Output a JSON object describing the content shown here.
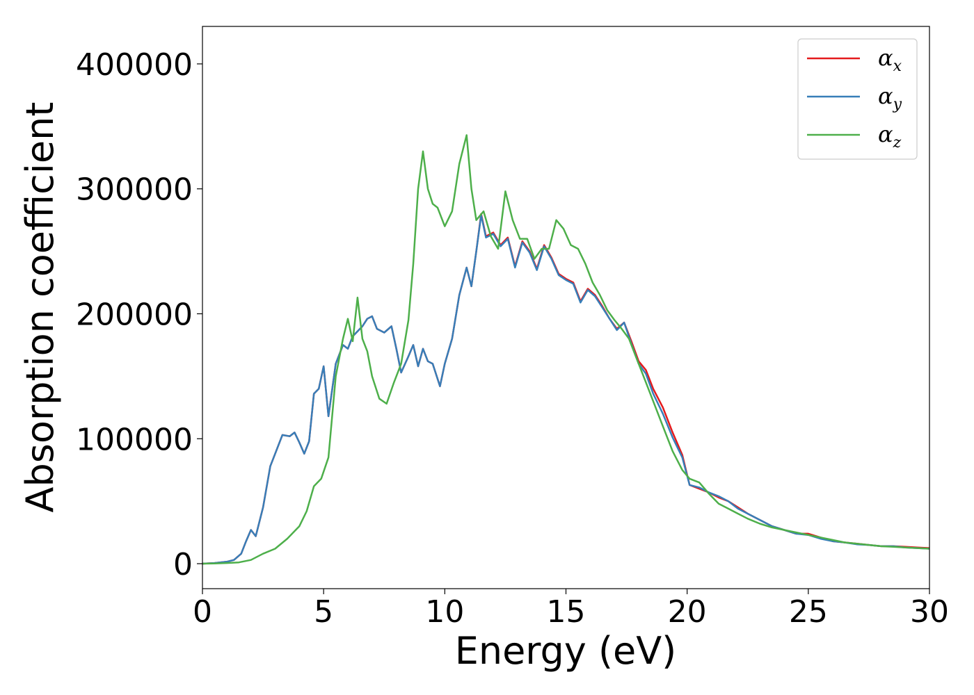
{
  "chart_data": {
    "type": "line",
    "title": "",
    "xlabel": "Energy (eV)",
    "ylabel": "Absorption coefficient",
    "xlim": [
      0,
      30
    ],
    "ylim": [
      -20000,
      430000
    ],
    "xticks": [
      0,
      5,
      10,
      15,
      20,
      25,
      30
    ],
    "xtick_labels": [
      "0",
      "5",
      "10",
      "15",
      "20",
      "25",
      "30"
    ],
    "yticks": [
      0,
      100000,
      200000,
      300000,
      400000
    ],
    "ytick_labels": [
      "0",
      "100000",
      "200000",
      "300000",
      "400000"
    ],
    "grid": false,
    "legend_position": "top-right",
    "series": [
      {
        "name": "α_x",
        "legend_base": "α",
        "legend_sub": "x",
        "color": "#e41a1c",
        "x": [
          0,
          0.5,
          1,
          1.3,
          1.6,
          1.8,
          2.0,
          2.2,
          2.5,
          2.8,
          3.0,
          3.3,
          3.6,
          3.8,
          4.0,
          4.2,
          4.4,
          4.6,
          4.8,
          5.0,
          5.2,
          5.5,
          5.8,
          6.0,
          6.2,
          6.4,
          6.6,
          6.8,
          7.0,
          7.2,
          7.5,
          7.8,
          8.0,
          8.2,
          8.5,
          8.7,
          8.9,
          9.1,
          9.3,
          9.5,
          9.8,
          10.0,
          10.3,
          10.6,
          10.9,
          11.1,
          11.3,
          11.5,
          11.7,
          12.0,
          12.3,
          12.6,
          12.9,
          13.2,
          13.5,
          13.8,
          14.1,
          14.4,
          14.7,
          15.0,
          15.3,
          15.6,
          15.9,
          16.2,
          16.5,
          16.8,
          17.1,
          17.4,
          17.7,
          18.0,
          18.3,
          18.6,
          19.0,
          19.4,
          19.8,
          20.1,
          20.5,
          20.9,
          21.3,
          21.7,
          22.1,
          22.5,
          23.0,
          23.5,
          24.0,
          24.5,
          25.0,
          25.5,
          26.0,
          26.5,
          27.0,
          27.5,
          28.0,
          28.5,
          29.0,
          29.5,
          30.0
        ],
        "y": [
          0,
          500,
          1500,
          3000,
          8000,
          18000,
          27000,
          22000,
          45000,
          78000,
          88000,
          103000,
          102000,
          105000,
          97000,
          88000,
          98000,
          136000,
          140000,
          158000,
          118000,
          160000,
          175000,
          172000,
          182000,
          186000,
          190000,
          196000,
          198000,
          188000,
          185000,
          190000,
          172000,
          153000,
          166000,
          175000,
          158000,
          172000,
          162000,
          160000,
          142000,
          160000,
          180000,
          215000,
          237000,
          222000,
          250000,
          280000,
          262000,
          265000,
          255000,
          261000,
          238000,
          258000,
          250000,
          236000,
          255000,
          245000,
          232000,
          228000,
          225000,
          210000,
          220000,
          215000,
          206000,
          196000,
          188000,
          193000,
          178000,
          162000,
          155000,
          140000,
          125000,
          105000,
          87000,
          63000,
          60000,
          57000,
          53000,
          50000,
          45000,
          40000,
          35000,
          30000,
          27000,
          24000,
          24000,
          21000,
          18000,
          17000,
          16000,
          15000,
          14000,
          14000,
          13500,
          13000,
          12500
        ]
      },
      {
        "name": "α_y",
        "legend_base": "α",
        "legend_sub": "y",
        "color": "#377eb8",
        "x": [
          0,
          0.5,
          1,
          1.3,
          1.6,
          1.8,
          2.0,
          2.2,
          2.5,
          2.8,
          3.0,
          3.3,
          3.6,
          3.8,
          4.0,
          4.2,
          4.4,
          4.6,
          4.8,
          5.0,
          5.2,
          5.5,
          5.8,
          6.0,
          6.2,
          6.4,
          6.6,
          6.8,
          7.0,
          7.2,
          7.5,
          7.8,
          8.0,
          8.2,
          8.5,
          8.7,
          8.9,
          9.1,
          9.3,
          9.5,
          9.8,
          10.0,
          10.3,
          10.6,
          10.9,
          11.1,
          11.3,
          11.5,
          11.7,
          12.0,
          12.3,
          12.6,
          12.9,
          13.2,
          13.5,
          13.8,
          14.1,
          14.4,
          14.7,
          15.0,
          15.3,
          15.6,
          15.9,
          16.2,
          16.5,
          16.8,
          17.1,
          17.4,
          17.7,
          18.0,
          18.3,
          18.6,
          19.0,
          19.4,
          19.8,
          20.1,
          20.5,
          20.9,
          21.3,
          21.7,
          22.1,
          22.5,
          23.0,
          23.5,
          24.0,
          24.5,
          25.0,
          25.5,
          26.0,
          26.5,
          27.0,
          27.5,
          28.0,
          28.5,
          29.0,
          29.5,
          30.0
        ],
        "y": [
          0,
          500,
          1500,
          3000,
          8000,
          18000,
          27000,
          22000,
          45000,
          78000,
          88000,
          103000,
          102000,
          105000,
          97000,
          88000,
          98000,
          136000,
          140000,
          158000,
          118000,
          160000,
          175000,
          172000,
          182000,
          186000,
          190000,
          196000,
          198000,
          188000,
          185000,
          190000,
          172000,
          153000,
          166000,
          175000,
          158000,
          172000,
          162000,
          160000,
          142000,
          160000,
          180000,
          215000,
          237000,
          222000,
          250000,
          279000,
          261000,
          264000,
          254000,
          260000,
          237000,
          257000,
          249000,
          235000,
          254000,
          244000,
          231000,
          227000,
          224000,
          209000,
          219000,
          214000,
          205000,
          196000,
          187000,
          193000,
          176000,
          160000,
          152000,
          136000,
          120000,
          101000,
          85000,
          63000,
          61000,
          57000,
          54000,
          50000,
          44000,
          40000,
          35000,
          30000,
          27000,
          24000,
          23000,
          20000,
          18000,
          17000,
          15500,
          15000,
          14000,
          14000,
          13000,
          12500,
          12000
        ]
      },
      {
        "name": "α_z",
        "legend_base": "α",
        "legend_sub": "z",
        "color": "#4daf4a",
        "x": [
          0,
          0.5,
          1,
          1.5,
          2.0,
          2.5,
          3.0,
          3.5,
          4.0,
          4.3,
          4.6,
          4.9,
          5.2,
          5.5,
          5.8,
          6.0,
          6.2,
          6.4,
          6.6,
          6.8,
          7.0,
          7.3,
          7.6,
          7.9,
          8.2,
          8.5,
          8.7,
          8.9,
          9.1,
          9.3,
          9.5,
          9.7,
          10.0,
          10.3,
          10.6,
          10.9,
          11.1,
          11.3,
          11.6,
          11.9,
          12.2,
          12.5,
          12.8,
          13.1,
          13.4,
          13.7,
          14.0,
          14.3,
          14.6,
          14.9,
          15.2,
          15.5,
          15.8,
          16.1,
          16.4,
          16.7,
          17.0,
          17.3,
          17.6,
          17.9,
          18.2,
          18.6,
          19.0,
          19.4,
          19.8,
          20.1,
          20.5,
          20.9,
          21.3,
          21.7,
          22.1,
          22.5,
          23.0,
          23.5,
          24.0,
          24.5,
          25.0,
          25.5,
          26.0,
          26.5,
          27.0,
          27.5,
          28.0,
          28.5,
          29.0,
          29.5,
          30.0
        ],
        "y": [
          0,
          200,
          500,
          1000,
          3000,
          8000,
          12000,
          20000,
          30000,
          42000,
          62000,
          68000,
          85000,
          150000,
          180000,
          196000,
          178000,
          213000,
          180000,
          170000,
          150000,
          132000,
          128000,
          145000,
          160000,
          195000,
          240000,
          300000,
          330000,
          300000,
          288000,
          285000,
          270000,
          282000,
          320000,
          343000,
          300000,
          275000,
          282000,
          262000,
          252000,
          298000,
          275000,
          260000,
          260000,
          244000,
          252000,
          252000,
          275000,
          268000,
          255000,
          252000,
          240000,
          225000,
          215000,
          203000,
          195000,
          188000,
          180000,
          165000,
          150000,
          130000,
          110000,
          90000,
          75000,
          68000,
          65000,
          56000,
          48000,
          44000,
          40000,
          36000,
          32000,
          29000,
          27000,
          25000,
          23000,
          21000,
          19000,
          17000,
          16000,
          15000,
          14000,
          13500,
          13000,
          12500,
          12000
        ]
      }
    ]
  }
}
